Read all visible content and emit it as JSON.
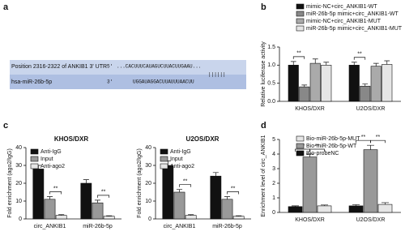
{
  "panel_a": {
    "panel_label": "a",
    "header": "Position 2316-2322 of ANKIB1 3' UTR",
    "target_end": "5'",
    "target_seq": "...CACUUUCAUAGUCUUACUUGAAU...",
    "pairing": "||||||",
    "mirna": "hsa-miR-26b-5p",
    "mirna_end": "3'",
    "mirna_seq": "UGGAUAGGACUUAUUUAACUU"
  },
  "chart_data": [
    {
      "type": "bar",
      "panel_label": "b",
      "ylabel": "Relative luciferase activity",
      "categories": [
        "KHOS/DXR",
        "U2OS/DXR"
      ],
      "series": [
        {
          "name": "mimic-NC+circ_ANKIB1-WT",
          "color": "#111111",
          "values": [
            1.0,
            1.0
          ],
          "errors": [
            0.1,
            0.08
          ]
        },
        {
          "name": "miR-26b-5p mimic+circ_ANKIB1-WT",
          "color": "#888888",
          "values": [
            0.4,
            0.42
          ],
          "errors": [
            0.05,
            0.06
          ]
        },
        {
          "name": "mimic-NC+circ_ANKIB1-MUT",
          "color": "#aaaaaa",
          "values": [
            1.05,
            0.97
          ],
          "errors": [
            0.12,
            0.08
          ]
        },
        {
          "name": "miR-26b-5p mimic+circ_ANKIB1-MUT",
          "color": "#e6e6e6",
          "values": [
            1.0,
            1.02
          ],
          "errors": [
            0.08,
            0.1
          ]
        }
      ],
      "annotations": [
        "**",
        "**"
      ],
      "ylim": [
        0,
        1.5
      ],
      "yticks": [
        {
          "value": 0,
          "label": "0.0"
        },
        {
          "value": 0.5,
          "label": "0.5"
        },
        {
          "value": 1,
          "label": "1.0"
        },
        {
          "value": 1.5,
          "label": "1.5"
        }
      ]
    },
    {
      "type": "bar",
      "panel_label": "c",
      "title": "KHOS/DXR",
      "ylabel": "Fold enrichment (ago2/IgG)",
      "categories": [
        "circ_ANKIB1",
        "miR-26b-5p"
      ],
      "series": [
        {
          "name": "Anti-IgG",
          "color": "#111111",
          "values": [
            28,
            20
          ],
          "errors": [
            2,
            2
          ]
        },
        {
          "name": "Input",
          "color": "#999999",
          "values": [
            11,
            9
          ],
          "errors": [
            1.5,
            1.5
          ]
        },
        {
          "name": "Anti-ago2",
          "color": "#e6e6e6",
          "values": [
            2,
            1.5
          ],
          "errors": [
            0.4,
            0.3
          ]
        }
      ],
      "annotations": [
        "**",
        "**"
      ],
      "ylim": [
        0,
        40
      ],
      "yticks": [
        0,
        10,
        20,
        30,
        40
      ]
    },
    {
      "type": "bar",
      "title": "U2OS/DXR",
      "ylabel": "Fold enrichment (ago2/IgG)",
      "categories": [
        "circ_ANKIB1",
        "miR-26b-5p"
      ],
      "series": [
        {
          "name": "Anti-IgG",
          "color": "#111111",
          "values": [
            30,
            24
          ],
          "errors": [
            2.5,
            2
          ]
        },
        {
          "name": "Input",
          "color": "#999999",
          "values": [
            15,
            11
          ],
          "errors": [
            1.5,
            1.5
          ]
        },
        {
          "name": "Anti-ago2",
          "color": "#e6e6e6",
          "values": [
            2,
            1.5
          ],
          "errors": [
            0.4,
            0.3
          ]
        }
      ],
      "annotations": [
        "**",
        "**"
      ],
      "ylim": [
        0,
        40
      ],
      "yticks": [
        0,
        10,
        20,
        30,
        40
      ]
    },
    {
      "type": "bar",
      "panel_label": "d",
      "ylabel": "Enrichment level of circ_ANKIB1",
      "categories": [
        "KHOS/DXR",
        "U2OS/DXR"
      ],
      "series": [
        {
          "name": "Bio-probeNC",
          "color": "#111111",
          "values": [
            0.4,
            0.45
          ],
          "errors": [
            0.05,
            0.08
          ]
        },
        {
          "name": "Bio-miR-26b-5p-WT",
          "color": "#999999",
          "values": [
            3.8,
            4.3
          ],
          "errors": [
            0.2,
            0.3
          ]
        },
        {
          "name": "Bio-miR-26b-5p-MUT",
          "color": "#e6e6e6",
          "values": [
            0.45,
            0.55
          ],
          "errors": [
            0.06,
            0.12
          ]
        }
      ],
      "annotations": [
        "**",
        "**",
        "**",
        "**"
      ],
      "ylim": [
        0,
        5
      ],
      "yticks": [
        0,
        1,
        2,
        3,
        4,
        5
      ]
    }
  ]
}
